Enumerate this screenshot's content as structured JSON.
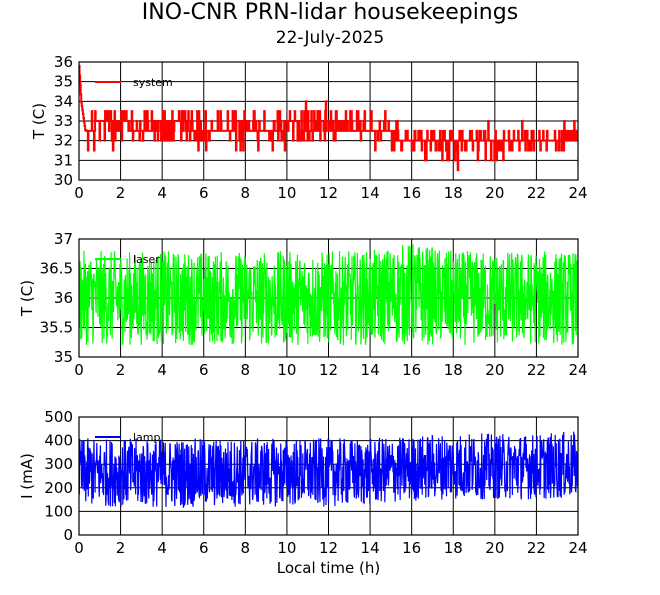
{
  "title": "INO-CNR PRN-lidar housekeepings",
  "subtitle": "22-July-2025",
  "colors": {
    "system": "#ff0000",
    "laser": "#00ff00",
    "lamp": "#0000ff"
  },
  "chart_data": [
    {
      "type": "line",
      "ylabel": "T (C)",
      "xlabel": "",
      "xlim": [
        0,
        24
      ],
      "ylim": [
        30,
        36
      ],
      "xticks": [
        "0",
        "2",
        "4",
        "6",
        "8",
        "10",
        "12",
        "14",
        "16",
        "18",
        "20",
        "22",
        "24"
      ],
      "yticks": [
        "30",
        "31",
        "32",
        "33",
        "34",
        "35",
        "36"
      ],
      "grid": true,
      "legend_placement": "top-left",
      "series": [
        {
          "name": "system",
          "color": "#ff0000",
          "x": [
            0,
            0.1,
            0.3,
            1,
            2,
            3,
            4,
            5,
            6,
            7,
            8,
            9,
            10,
            11,
            12,
            13,
            14,
            15,
            16,
            17,
            18,
            19,
            20,
            21,
            22,
            23,
            24
          ],
          "y": [
            35.8,
            34.0,
            32.5,
            32.8,
            32.8,
            32.6,
            32.8,
            32.8,
            32.6,
            32.7,
            32.8,
            32.5,
            32.8,
            32.7,
            32.8,
            32.7,
            32.5,
            32.3,
            32.0,
            31.9,
            31.8,
            31.9,
            31.9,
            32.0,
            32.1,
            32.2,
            32.2
          ],
          "min": [
            35.8,
            34.0,
            31.5,
            31.5,
            31.8,
            31.5,
            31.8,
            31.6,
            31.5,
            31.5,
            31.6,
            31.5,
            31.6,
            31.8,
            31.8,
            31.6,
            31.5,
            31.5,
            31.5,
            31.0,
            30.5,
            31.0,
            31.0,
            31.0,
            31.5,
            31.5,
            31.5
          ],
          "max": [
            35.8,
            34.0,
            33.5,
            33.8,
            33.8,
            33.5,
            33.8,
            33.8,
            33.5,
            33.8,
            33.8,
            33.5,
            33.8,
            33.8,
            33.8,
            33.5,
            33.5,
            33.2,
            32.5,
            32.8,
            32.5,
            32.8,
            32.8,
            32.8,
            32.8,
            32.8,
            32.8
          ]
        }
      ]
    },
    {
      "type": "line",
      "ylabel": "T (C)",
      "xlabel": "",
      "xlim": [
        0,
        24
      ],
      "ylim": [
        35,
        37
      ],
      "xticks": [
        "0",
        "2",
        "4",
        "6",
        "8",
        "10",
        "12",
        "14",
        "16",
        "18",
        "20",
        "22",
        "24"
      ],
      "yticks": [
        "35",
        "35.5",
        "36",
        "36.5",
        "37"
      ],
      "grid": true,
      "legend_placement": "top-left",
      "series": [
        {
          "name": "laser",
          "color": "#00ff00",
          "x": [
            0,
            2,
            4,
            6,
            8,
            10,
            12,
            14,
            16,
            18,
            20,
            22,
            24
          ],
          "y": [
            36.0,
            36.0,
            36.0,
            36.0,
            36.0,
            36.0,
            36.0,
            36.0,
            36.0,
            36.0,
            36.0,
            36.0,
            36.0
          ],
          "min": [
            35.2,
            35.2,
            35.2,
            35.2,
            35.2,
            35.2,
            35.2,
            35.2,
            35.2,
            35.2,
            35.2,
            35.2,
            35.2
          ],
          "max": [
            36.8,
            36.8,
            36.8,
            36.8,
            36.8,
            36.8,
            36.8,
            36.8,
            36.95,
            36.8,
            36.8,
            36.8,
            36.8
          ]
        }
      ]
    },
    {
      "type": "line",
      "ylabel": "I (mA)",
      "xlabel": "Local time (h)",
      "xlim": [
        0,
        24
      ],
      "ylim": [
        0,
        500
      ],
      "xticks": [
        "0",
        "2",
        "4",
        "6",
        "8",
        "10",
        "12",
        "14",
        "16",
        "18",
        "20",
        "22",
        "24"
      ],
      "yticks": [
        "0",
        "100",
        "200",
        "300",
        "400",
        "500"
      ],
      "grid": true,
      "legend_placement": "top-left",
      "series": [
        {
          "name": "lamp",
          "color": "#0000ff",
          "x": [
            0,
            2,
            4,
            6,
            8,
            10,
            12,
            14,
            16,
            17,
            18,
            20,
            22,
            24
          ],
          "y": [
            270,
            270,
            270,
            270,
            270,
            270,
            270,
            270,
            280,
            290,
            290,
            290,
            290,
            290
          ],
          "min": [
            120,
            120,
            115,
            115,
            120,
            120,
            120,
            125,
            140,
            150,
            150,
            150,
            150,
            150
          ],
          "max": [
            410,
            410,
            410,
            410,
            410,
            410,
            410,
            410,
            420,
            430,
            435,
            430,
            430,
            440
          ]
        }
      ]
    }
  ]
}
